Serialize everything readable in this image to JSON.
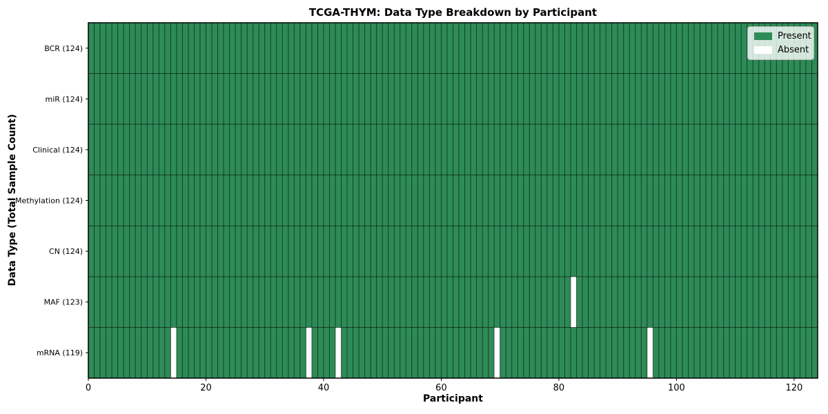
{
  "chart_data": {
    "type": "heatmap",
    "title": "TCGA-THYM: Data Type Breakdown by Participant",
    "xlabel": "Participant",
    "ylabel": "Data Type (Total Sample Count)",
    "xlim": [
      0,
      124
    ],
    "n_participants": 124,
    "x_ticks": [
      0,
      20,
      40,
      60,
      80,
      100,
      120
    ],
    "rows": [
      {
        "label": "BCR (124)",
        "present_count": 124,
        "absent_participants": []
      },
      {
        "label": "miR (124)",
        "present_count": 124,
        "absent_participants": []
      },
      {
        "label": "Clinical (124)",
        "present_count": 124,
        "absent_participants": []
      },
      {
        "label": "Methylation (124)",
        "present_count": 124,
        "absent_participants": []
      },
      {
        "label": "CN (124)",
        "present_count": 124,
        "absent_participants": []
      },
      {
        "label": "MAF (123)",
        "present_count": 123,
        "absent_participants": [
          82
        ]
      },
      {
        "label": "mRNA (119)",
        "present_count": 119,
        "absent_participants": [
          14,
          37,
          42,
          69,
          95
        ]
      }
    ],
    "legend": [
      {
        "label": "Present",
        "color": "#2e8b57"
      },
      {
        "label": "Absent",
        "color": "#ffffff"
      }
    ],
    "legend_position": "upper right",
    "grid": "cell-edges",
    "colors": {
      "present": "#2e8b57",
      "absent": "#ffffff",
      "cell_edge": "rgba(0,0,0,0.55)",
      "axis": "#000000",
      "text": "#000000"
    }
  }
}
